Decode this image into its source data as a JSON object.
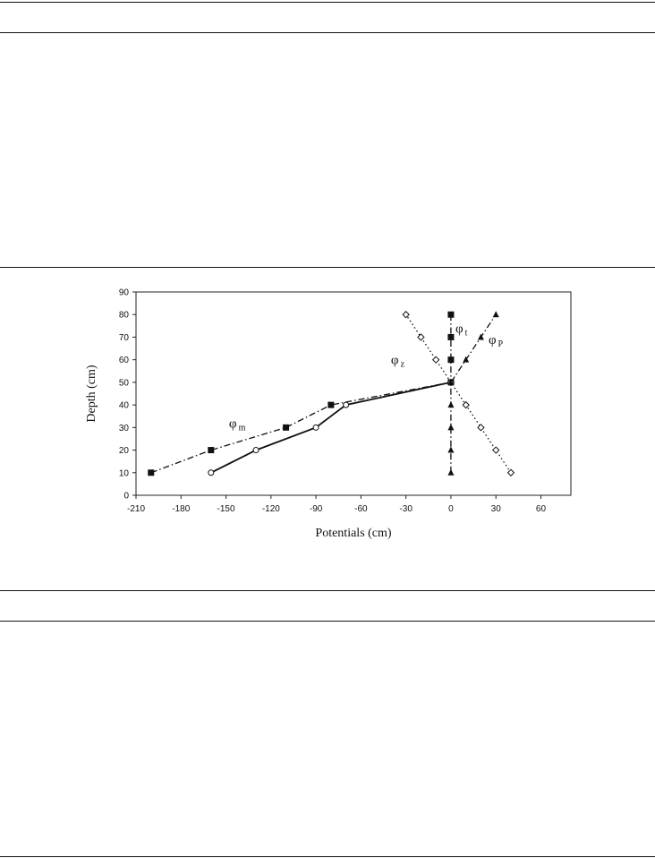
{
  "chart_data": {
    "type": "line",
    "xlabel": "Potentials (cm)",
    "ylabel": "Depth (cm)",
    "xlim": [
      -210,
      80
    ],
    "ylim": [
      0,
      90
    ],
    "xticks": [
      -210,
      -180,
      -150,
      -120,
      -90,
      -60,
      -30,
      0,
      30,
      60
    ],
    "yticks": [
      0,
      10,
      20,
      30,
      40,
      50,
      60,
      70,
      80,
      90
    ],
    "grid": false,
    "series": [
      {
        "name": "φm",
        "name_base": "φ",
        "name_sub": "m",
        "marker": "circle-open",
        "line": "solid",
        "points": [
          [
            -160,
            10
          ],
          [
            -130,
            20
          ],
          [
            -90,
            30
          ],
          [
            -70,
            40
          ],
          [
            0,
            50
          ]
        ]
      },
      {
        "name": "φt",
        "name_base": "φ",
        "name_sub": "t",
        "marker": "square-filled",
        "line": "dash-dot",
        "points": [
          [
            -200,
            10
          ],
          [
            -160,
            20
          ],
          [
            -110,
            30
          ],
          [
            -80,
            40
          ],
          [
            0,
            50
          ],
          [
            0,
            60
          ],
          [
            0,
            70
          ],
          [
            0,
            80
          ]
        ]
      },
      {
        "name": "φz",
        "name_base": "φ",
        "name_sub": "z",
        "marker": "diamond-open",
        "line": "dotted",
        "points": [
          [
            40,
            10
          ],
          [
            30,
            20
          ],
          [
            20,
            30
          ],
          [
            10,
            40
          ],
          [
            0,
            50
          ],
          [
            -10,
            60
          ],
          [
            -20,
            70
          ],
          [
            -30,
            80
          ]
        ]
      },
      {
        "name": "φP",
        "name_base": "φ",
        "name_sub": "P",
        "marker": "triangle-filled",
        "line": "dash-dot",
        "points": [
          [
            0,
            10
          ],
          [
            0,
            20
          ],
          [
            0,
            30
          ],
          [
            0,
            40
          ],
          [
            0,
            50
          ],
          [
            10,
            60
          ],
          [
            20,
            70
          ],
          [
            30,
            80
          ]
        ]
      }
    ]
  }
}
